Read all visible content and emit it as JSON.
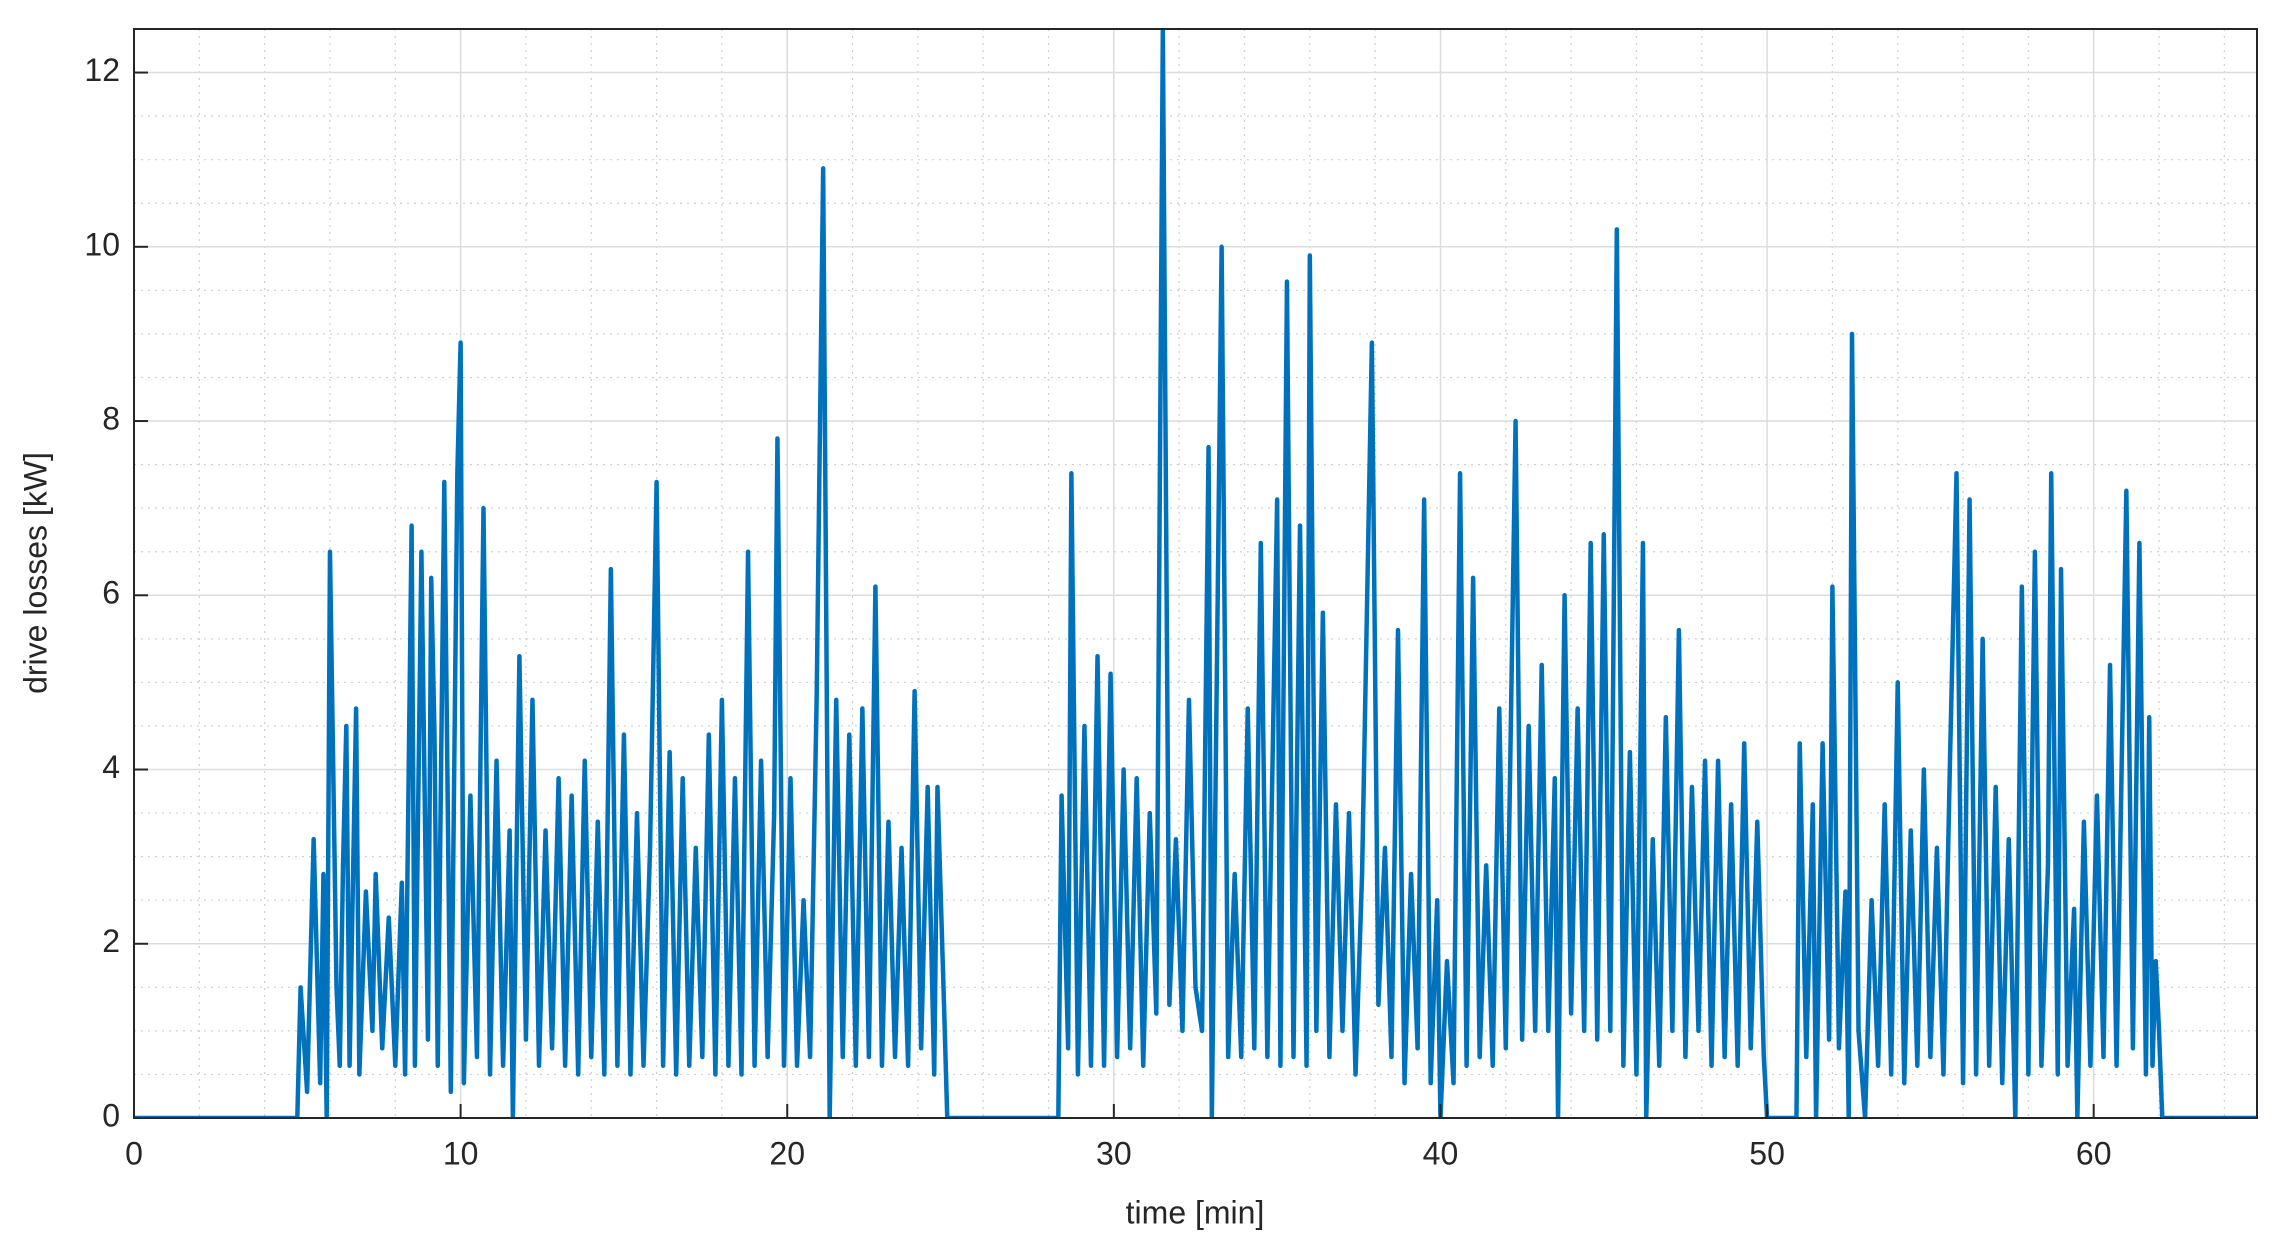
{
  "chart_data": {
    "type": "line",
    "xlabel": "time [min]",
    "ylabel": "drive losses [kW]",
    "xlim": [
      0,
      65
    ],
    "ylim": [
      0,
      12.5
    ],
    "xticks": [
      0,
      10,
      20,
      30,
      40,
      50,
      60
    ],
    "yticks": [
      0,
      2,
      4,
      6,
      8,
      10,
      12
    ],
    "xminorticks": [
      2,
      4,
      6,
      8,
      12,
      14,
      16,
      18,
      22,
      24,
      26,
      28,
      32,
      34,
      36,
      38,
      42,
      44,
      46,
      48,
      52,
      54,
      56,
      58,
      62,
      64
    ],
    "yminorticks": [
      0.5,
      1,
      1.5,
      2.5,
      3,
      3.5,
      4.5,
      5,
      5.5,
      6.5,
      7,
      7.5,
      8.5,
      9,
      9.5,
      10.5,
      11,
      11.5,
      12.5
    ],
    "grid": true,
    "minor_grid": true,
    "color": "#0072bd",
    "x": [
      0,
      5.0,
      5.1,
      5.3,
      5.5,
      5.7,
      5.8,
      5.9,
      6.0,
      6.2,
      6.3,
      6.4,
      6.5,
      6.6,
      6.8,
      6.9,
      7.1,
      7.3,
      7.4,
      7.6,
      7.8,
      8.0,
      8.2,
      8.3,
      8.5,
      8.6,
      8.8,
      9.0,
      9.1,
      9.2,
      9.3,
      9.5,
      9.7,
      9.9,
      10.0,
      10.1,
      10.3,
      10.5,
      10.7,
      10.9,
      11.1,
      11.3,
      11.5,
      11.6,
      11.8,
      12.0,
      12.2,
      12.4,
      12.6,
      12.8,
      13.0,
      13.2,
      13.4,
      13.6,
      13.8,
      14.0,
      14.2,
      14.4,
      14.6,
      14.8,
      15.0,
      15.2,
      15.4,
      15.6,
      15.8,
      16.0,
      16.2,
      16.4,
      16.6,
      16.8,
      17.0,
      17.2,
      17.4,
      17.6,
      17.8,
      18.0,
      18.2,
      18.4,
      18.6,
      18.8,
      19.0,
      19.2,
      19.4,
      19.6,
      19.7,
      19.9,
      20.1,
      20.3,
      20.5,
      20.7,
      20.9,
      21.1,
      21.3,
      21.5,
      21.7,
      21.9,
      22.1,
      22.3,
      22.5,
      22.7,
      22.9,
      23.1,
      23.3,
      23.5,
      23.7,
      23.9,
      24.1,
      24.3,
      24.5,
      24.6,
      24.8,
      24.9,
      28.3,
      28.4,
      28.6,
      28.7,
      28.9,
      29.1,
      29.3,
      29.5,
      29.7,
      29.9,
      30.1,
      30.3,
      30.5,
      30.7,
      30.9,
      31.1,
      31.3,
      31.5,
      31.7,
      31.9,
      32.1,
      32.3,
      32.5,
      32.7,
      32.9,
      33.0,
      33.3,
      33.5,
      33.7,
      33.9,
      34.1,
      34.3,
      34.5,
      34.7,
      35.0,
      35.1,
      35.3,
      35.5,
      35.7,
      35.9,
      36.0,
      36.2,
      36.4,
      36.6,
      36.8,
      37.0,
      37.2,
      37.4,
      37.6,
      37.9,
      38.1,
      38.3,
      38.5,
      38.7,
      38.9,
      39.1,
      39.3,
      39.5,
      39.7,
      39.9,
      40.0,
      40.2,
      40.4,
      40.6,
      40.8,
      41.0,
      41.2,
      41.4,
      41.6,
      41.8,
      42.0,
      42.3,
      42.5,
      42.7,
      42.9,
      43.1,
      43.3,
      43.5,
      43.6,
      43.8,
      44.0,
      44.2,
      44.4,
      44.6,
      44.8,
      45.0,
      45.2,
      45.4,
      45.6,
      45.8,
      46.0,
      46.2,
      46.3,
      46.5,
      46.7,
      46.9,
      47.1,
      47.3,
      47.5,
      47.7,
      47.9,
      48.1,
      48.3,
      48.5,
      48.7,
      48.9,
      49.1,
      49.3,
      49.5,
      49.7,
      49.9,
      50.0,
      50.9,
      51.0,
      51.2,
      51.4,
      51.5,
      51.7,
      51.9,
      52.0,
      52.2,
      52.4,
      52.5,
      52.6,
      52.8,
      53.0,
      53.2,
      53.4,
      53.6,
      53.8,
      54.0,
      54.2,
      54.4,
      54.6,
      54.8,
      55.0,
      55.2,
      55.4,
      55.6,
      55.8,
      56.0,
      56.2,
      56.4,
      56.6,
      56.8,
      57.0,
      57.2,
      57.4,
      57.6,
      57.8,
      58.0,
      58.2,
      58.4,
      58.6,
      58.7,
      58.9,
      59.0,
      59.2,
      59.4,
      59.5,
      59.7,
      59.9,
      60.1,
      60.3,
      60.5,
      60.7,
      61.0,
      61.2,
      61.4,
      61.6,
      61.7,
      61.8,
      61.9,
      62.0,
      62.1,
      65
    ],
    "values": [
      0,
      0,
      1.5,
      0.3,
      3.2,
      0.4,
      2.8,
      0,
      6.5,
      1.5,
      0.6,
      2.9,
      4.5,
      0.6,
      4.7,
      0.5,
      2.6,
      1.0,
      2.8,
      0.8,
      2.3,
      0.6,
      2.7,
      0.5,
      6.8,
      0.6,
      6.5,
      0.9,
      6.2,
      4.4,
      0.6,
      7.3,
      0.3,
      7.4,
      8.9,
      0.4,
      3.7,
      0.7,
      7.0,
      0.5,
      4.1,
      0.6,
      3.3,
      0,
      5.3,
      0.9,
      4.8,
      0.6,
      3.3,
      0.8,
      3.9,
      0.6,
      3.7,
      0.5,
      4.1,
      0.7,
      3.4,
      0.5,
      6.3,
      0.6,
      4.4,
      0.5,
      3.5,
      0.6,
      3.1,
      7.3,
      0.6,
      4.2,
      0.5,
      3.9,
      0.6,
      3.1,
      0.7,
      4.4,
      0.5,
      4.8,
      0.6,
      3.9,
      0.5,
      6.5,
      0.6,
      4.1,
      0.7,
      3.5,
      7.8,
      0.6,
      3.9,
      0.6,
      2.5,
      0.7,
      4.8,
      10.9,
      0,
      4.8,
      0.7,
      4.4,
      0.6,
      4.7,
      0.7,
      6.1,
      0.6,
      3.4,
      0.7,
      3.1,
      0.6,
      4.9,
      0.8,
      3.8,
      0.5,
      3.8,
      1.3,
      0,
      0,
      3.7,
      0.8,
      7.4,
      0.5,
      4.5,
      0.6,
      5.3,
      0.6,
      5.1,
      0.7,
      4.0,
      0.8,
      3.9,
      0.6,
      3.5,
      1.2,
      12.5,
      1.3,
      3.2,
      1.0,
      4.8,
      1.5,
      1.0,
      7.7,
      0,
      10.0,
      0.7,
      2.8,
      0.7,
      4.7,
      0.8,
      6.6,
      0.7,
      7.1,
      0.6,
      9.6,
      0.7,
      6.8,
      0.6,
      9.9,
      1.0,
      5.8,
      0.7,
      3.6,
      1.0,
      3.5,
      0.5,
      2.8,
      8.9,
      1.3,
      3.1,
      0.7,
      5.6,
      0.4,
      2.8,
      0.8,
      7.1,
      0.4,
      2.5,
      0,
      1.8,
      0.4,
      7.4,
      0.6,
      6.2,
      0.7,
      2.9,
      0.6,
      4.7,
      0.8,
      8.0,
      0.9,
      4.5,
      1.0,
      5.2,
      1.0,
      3.9,
      0,
      6.0,
      1.2,
      4.7,
      1.0,
      6.6,
      0.9,
      6.7,
      1.0,
      10.2,
      0.6,
      4.2,
      0.5,
      6.6,
      0,
      3.2,
      0.6,
      4.6,
      1.0,
      5.6,
      0.7,
      3.8,
      1.0,
      4.1,
      0.6,
      4.1,
      0.7,
      3.6,
      0.6,
      4.3,
      0.8,
      3.4,
      0.7,
      0,
      0,
      4.3,
      0.7,
      3.6,
      0,
      4.3,
      0.9,
      6.1,
      0.8,
      2.6,
      0,
      9.0,
      1.0,
      0,
      2.5,
      0.6,
      3.6,
      0.5,
      5.0,
      0.4,
      3.3,
      0.6,
      4.0,
      0.7,
      3.1,
      0.5,
      4.1,
      7.4,
      0.4,
      7.1,
      0.5,
      5.5,
      0.6,
      3.8,
      0.4,
      3.2,
      0,
      6.1,
      0.5,
      6.5,
      0.6,
      2.9,
      7.4,
      0.5,
      6.3,
      0.6,
      2.4,
      0,
      3.4,
      0.6,
      3.7,
      0.7,
      5.2,
      0.6,
      7.2,
      0.8,
      6.6,
      0.5,
      4.6,
      0.6,
      1.8,
      1.0,
      0,
      0
    ]
  }
}
